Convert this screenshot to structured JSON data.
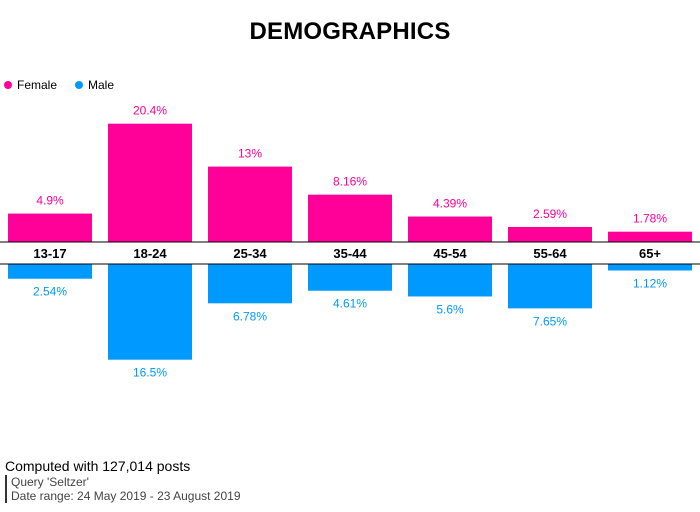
{
  "title": "DEMOGRAPHICS",
  "legend": [
    {
      "label": "Female",
      "color": "#ff0099"
    },
    {
      "label": "Male",
      "color": "#0099ff"
    }
  ],
  "chart_data": {
    "type": "bar",
    "title": "DEMOGRAPHICS",
    "categories": [
      "13-17",
      "18-24",
      "25-34",
      "35-44",
      "45-54",
      "55-64",
      "65+"
    ],
    "series": [
      {
        "name": "Female",
        "color": "#ff0099",
        "values": [
          4.9,
          20.4,
          13,
          8.16,
          4.39,
          2.59,
          1.78
        ],
        "labels": [
          "4.9%",
          "20.4%",
          "13%",
          "8.16%",
          "4.39%",
          "2.59%",
          "1.78%"
        ]
      },
      {
        "name": "Male",
        "color": "#0099ff",
        "values": [
          2.54,
          16.5,
          6.78,
          4.61,
          5.6,
          7.65,
          1.12
        ],
        "labels": [
          "2.54%",
          "16.5%",
          "6.78%",
          "4.61%",
          "5.6%",
          "7.65%",
          "1.12%"
        ]
      }
    ],
    "legend_position": "top-left",
    "grid": false
  },
  "footer": {
    "computed": "Computed with 127,014 posts",
    "query": "Query 'Seltzer'",
    "date_range": "Date range: 24 May 2019 - 23 August 2019"
  }
}
